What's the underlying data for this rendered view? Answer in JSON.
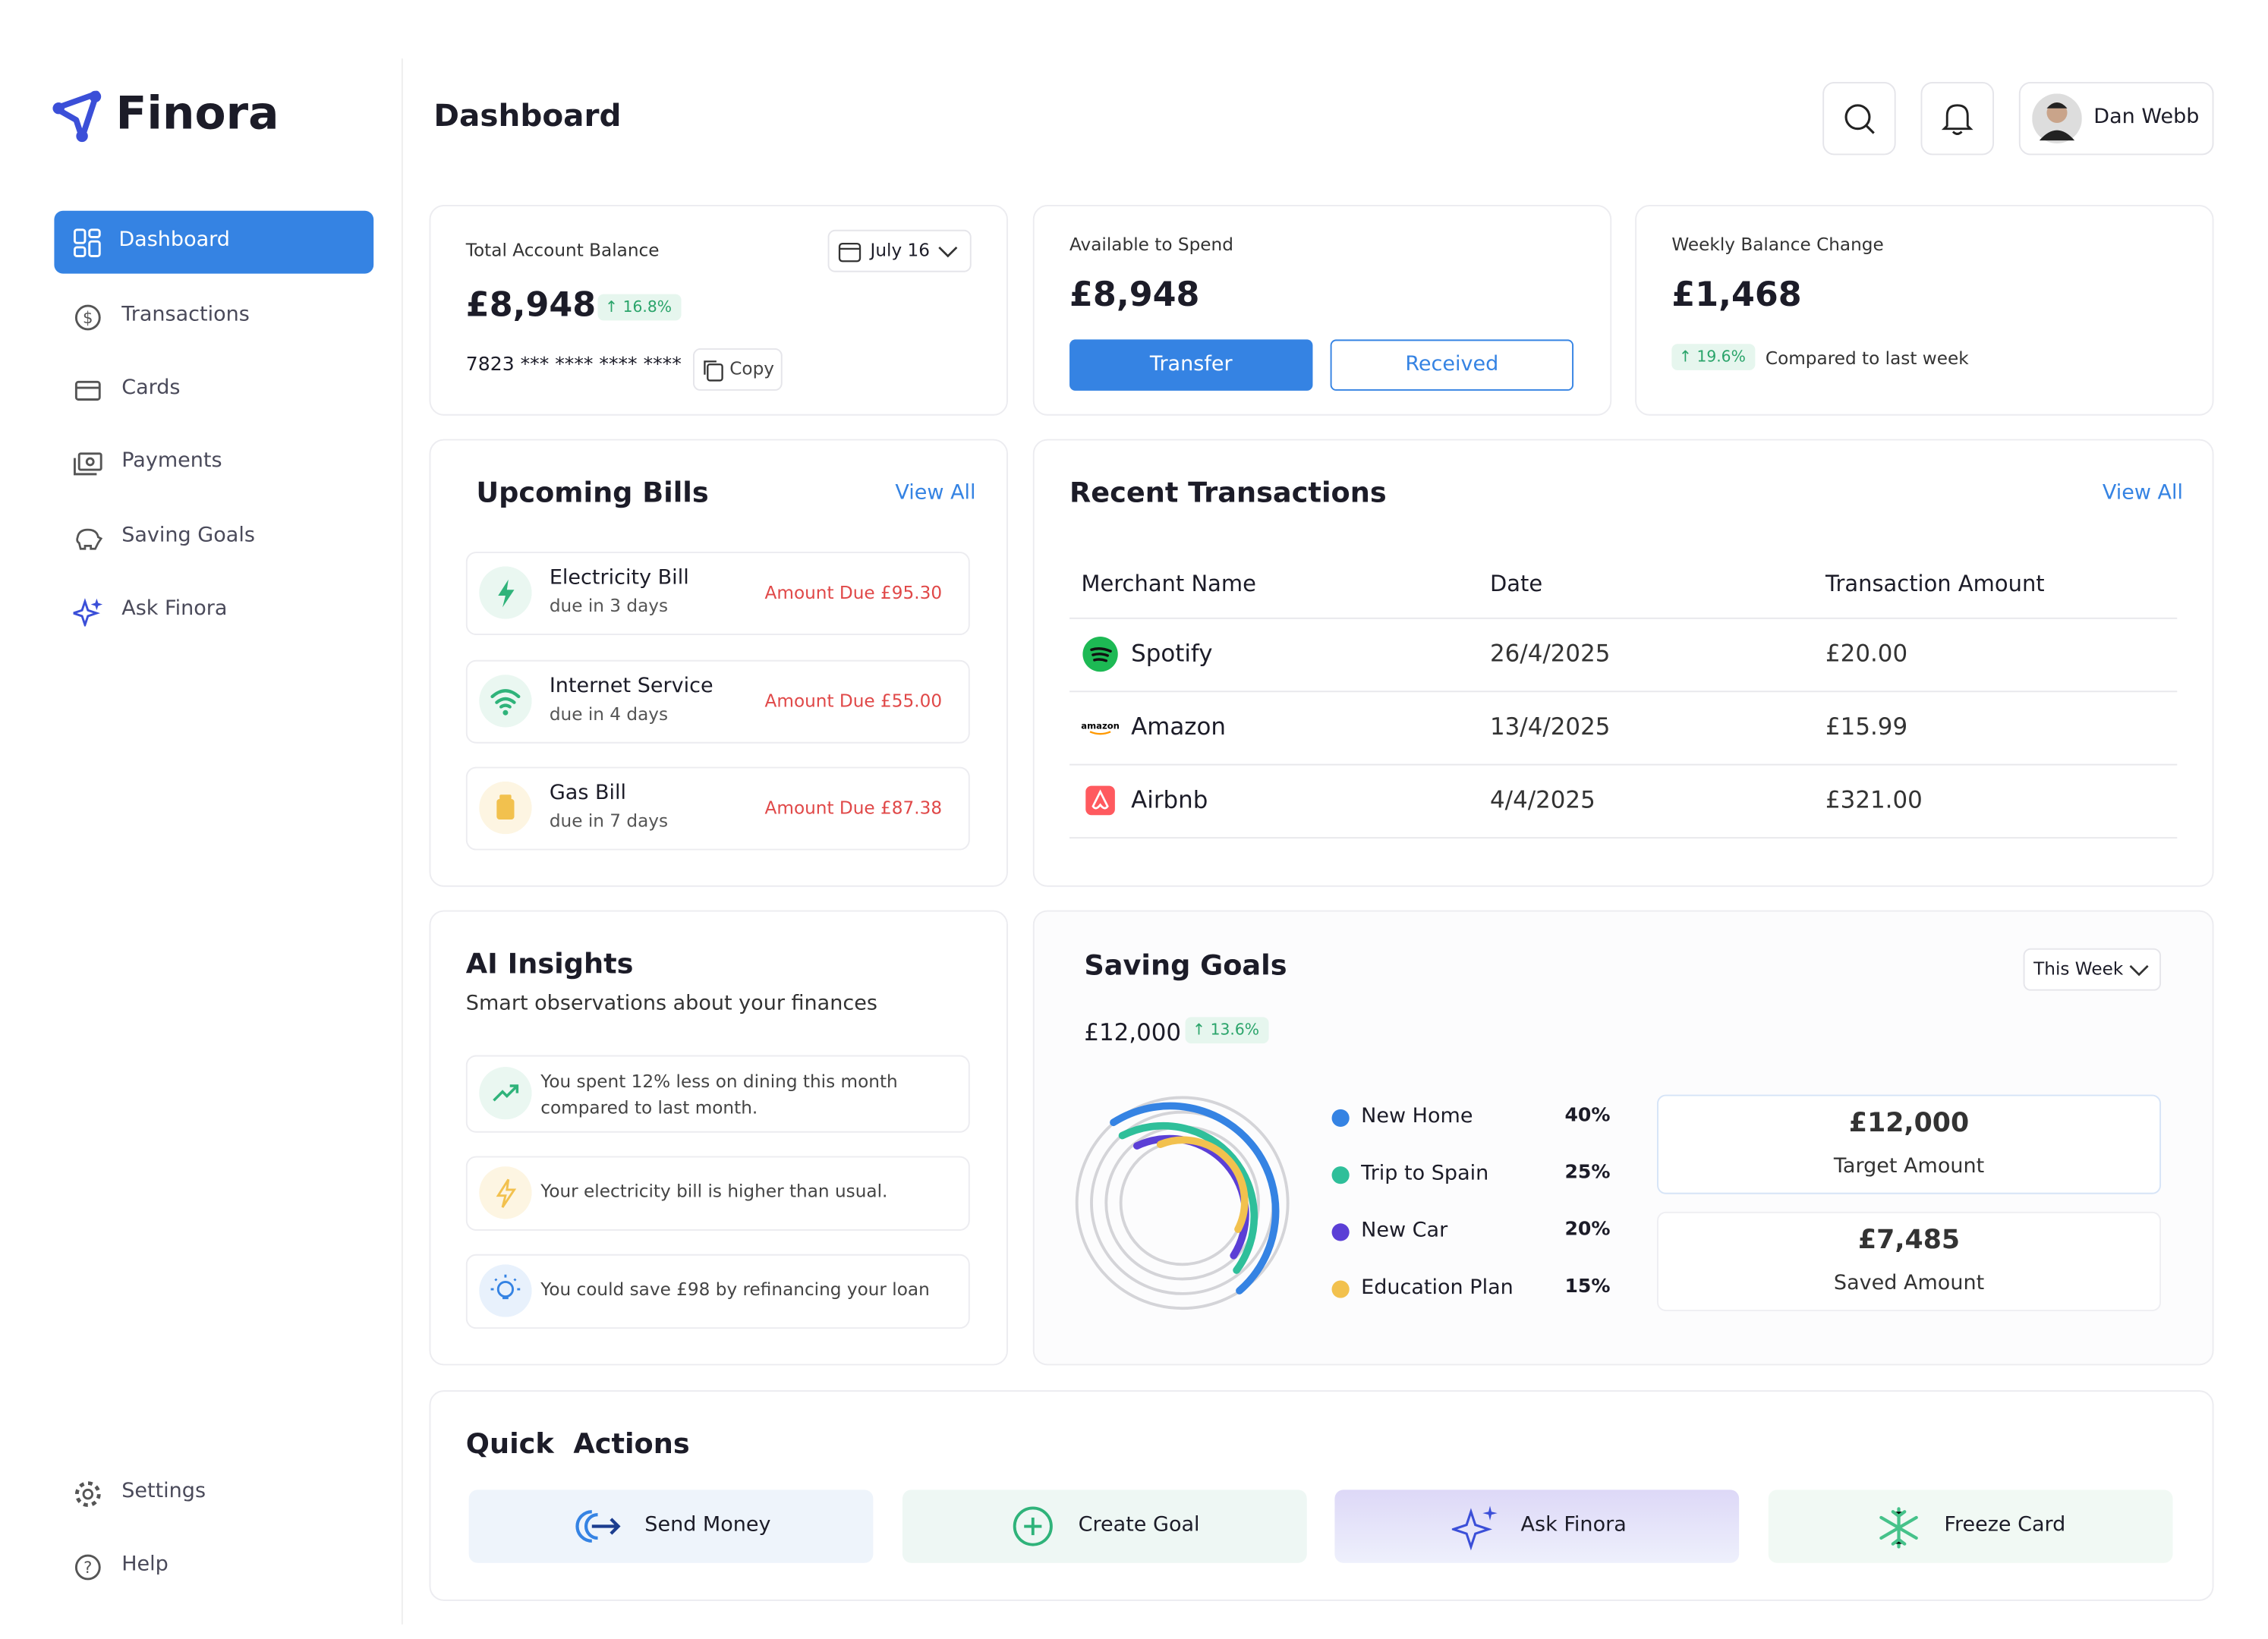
{
  "sidebar": {
    "brand": "Finora",
    "nav": [
      "Dashboard",
      "Transactions",
      "Cards",
      "Payments",
      "Saving Goals",
      "Ask Finora"
    ],
    "footer": [
      "Settings",
      "Help"
    ]
  },
  "header": {
    "title": "Dashboard",
    "user": "Dan Webb"
  },
  "balance": {
    "label": "Total Account Balance",
    "date": "July 16",
    "amount": "£8,948",
    "change": "16.8%",
    "account": "7823 *** **** **** ****",
    "copy": "Copy"
  },
  "available": {
    "label": "Available to Spend",
    "amount": "£8,948",
    "buttons": [
      "Transfer",
      "Received"
    ]
  },
  "weekly": {
    "label": "Weekly Balance Change",
    "amount": "£1,468",
    "change": "19.6%",
    "note": "Compared to last week"
  },
  "bills": {
    "title": "Upcoming Bills",
    "link": "View All",
    "items": [
      {
        "name": "Electricity Bill",
        "due": "due in 3 days",
        "amount": "Amount Due £95.30"
      },
      {
        "name": "Internet Service",
        "due": "due in 4 days",
        "amount": "Amount Due £55.00"
      },
      {
        "name": "Gas Bill",
        "due": "due in 7 days",
        "amount": "Amount Due £87.38"
      }
    ]
  },
  "transactions": {
    "title": "Recent Transactions",
    "link": "View All",
    "columns": [
      "Merchant Name",
      "Date",
      "Transaction Amount"
    ],
    "rows": [
      [
        "Spotify",
        "26/4/2025",
        "£20.00"
      ],
      [
        "Amazon",
        "13/4/2025",
        "£15.99"
      ],
      [
        "Airbnb",
        "4/4/2025",
        "£321.00"
      ]
    ]
  },
  "insights": {
    "title": "AI Insights",
    "subtitle": "Smart observations about your finances",
    "items": [
      "You spent 12% less on dining this month compared to last month.",
      "Your electricity bill is higher than usual.",
      "You could save £98 by refinancing your loan"
    ]
  },
  "saving_goals": {
    "title": "Saving Goals",
    "period": "This Week",
    "total": "£12,000",
    "change": "13.6%",
    "goals": [
      {
        "name": "New Home",
        "share": "40%"
      },
      {
        "name": "Trip to Spain",
        "share": "25%"
      },
      {
        "name": "New Car",
        "share": "20%"
      },
      {
        "name": "Education Plan",
        "share": "15%"
      }
    ],
    "target": {
      "amount": "£12,000",
      "label": "Target Amount"
    },
    "saved": {
      "amount": "£7,485",
      "label": "Saved Amount"
    }
  },
  "quick_actions": {
    "title": "Quick  Actions",
    "actions": [
      "Send Money",
      "Create Goal",
      "Ask Finora",
      "Freeze Card"
    ]
  }
}
